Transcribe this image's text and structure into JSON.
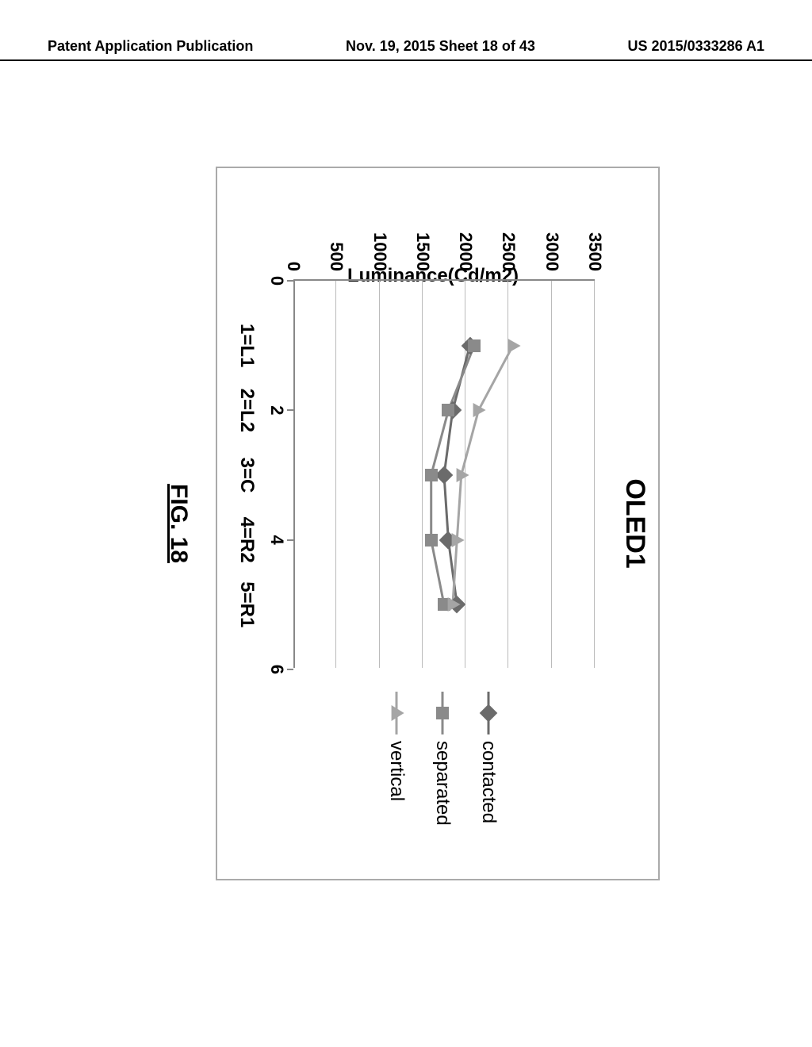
{
  "header": {
    "left": "Patent Application Publication",
    "center": "Nov. 19, 2015  Sheet 18 of 43",
    "right": "US 2015/0333286 A1"
  },
  "figure": {
    "caption": "FIG. 18",
    "chart": {
      "type": "line",
      "title": "OLED1",
      "ylabel": "Luminance(Cd/m2)",
      "ylim": [
        0,
        3500
      ],
      "ytick_step": 500,
      "yticks": [
        0,
        500,
        1000,
        1500,
        2000,
        2500,
        3000,
        3500
      ],
      "xlim": [
        0,
        6
      ],
      "xticks_numeric": [
        0,
        2,
        4,
        6
      ],
      "xticks_categorical": [
        {
          "x": 1,
          "label": "1=L1"
        },
        {
          "x": 2,
          "label": "2=L2"
        },
        {
          "x": 3,
          "label": "3=C"
        },
        {
          "x": 4,
          "label": "4=R2"
        },
        {
          "x": 5,
          "label": "5=R1"
        }
      ],
      "background_color": "#ffffff",
      "grid_color": "#bbbbbb",
      "axis_color": "#888888",
      "line_width": 3,
      "marker_size": 16,
      "series": [
        {
          "name": "contacted",
          "marker": "diamond",
          "color": "#6b6b6b",
          "points": [
            {
              "x": 1,
              "y": 2050
            },
            {
              "x": 2,
              "y": 1850
            },
            {
              "x": 3,
              "y": 1750
            },
            {
              "x": 4,
              "y": 1800
            },
            {
              "x": 5,
              "y": 1900
            }
          ]
        },
        {
          "name": "separated",
          "marker": "square",
          "color": "#8a8a8a",
          "points": [
            {
              "x": 1,
              "y": 2100
            },
            {
              "x": 2,
              "y": 1800
            },
            {
              "x": 3,
              "y": 1600
            },
            {
              "x": 4,
              "y": 1600
            },
            {
              "x": 5,
              "y": 1750
            }
          ]
        },
        {
          "name": "vertical",
          "marker": "triangle",
          "color": "#a5a5a5",
          "points": [
            {
              "x": 1,
              "y": 2550
            },
            {
              "x": 2,
              "y": 2150
            },
            {
              "x": 3,
              "y": 1950
            },
            {
              "x": 4,
              "y": 1900
            },
            {
              "x": 5,
              "y": 1850
            }
          ]
        }
      ]
    }
  }
}
